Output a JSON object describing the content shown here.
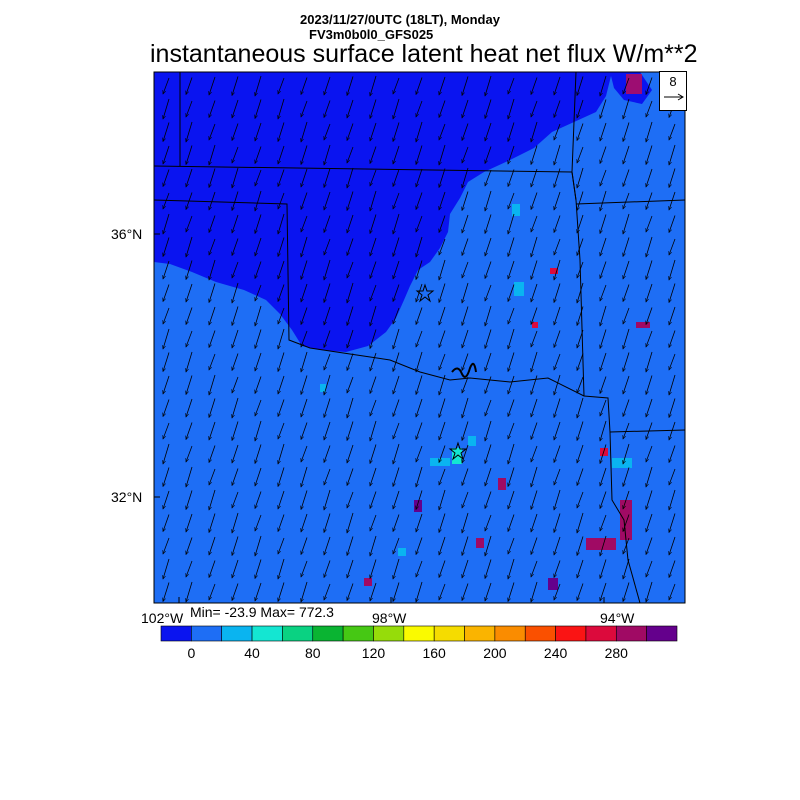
{
  "header": {
    "date_line": "2023/11/27/0UTC (18LT), Monday",
    "model_line": "FV3m0b0l0_GFS025",
    "title": "instantaneous surface latent heat net flux W/m**2"
  },
  "axes": {
    "lat_labels": [
      "36°N",
      "32°N"
    ],
    "lon_labels": [
      "102°W",
      "98°W",
      "94°W"
    ]
  },
  "stats": {
    "text": "Min= -23.9 Max= 772.3"
  },
  "wind_reference": {
    "value": "8"
  },
  "colorbar": {
    "colors": [
      "#0a14f0",
      "#1e6ef5",
      "#0ab4f0",
      "#14e6d2",
      "#0ad282",
      "#0ab432",
      "#46c814",
      "#96dc0a",
      "#fafa00",
      "#f5dc00",
      "#fab400",
      "#fa8c00",
      "#fa5000",
      "#fa1414",
      "#dc0a3c",
      "#a00a64",
      "#64008c"
    ],
    "tick_labels": [
      "0",
      "40",
      "80",
      "120",
      "160",
      "200",
      "240",
      "280"
    ]
  },
  "map": {
    "background_value_color": "#1e6ef5",
    "low_flux_color": "#0a14f0",
    "wind_direction": "north-northeasterly flow (arrows pointing south-southwest)"
  }
}
